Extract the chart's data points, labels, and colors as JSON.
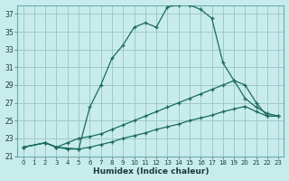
{
  "xlabel": "Humidex (Indice chaleur)",
  "bg_color": "#c8ecec",
  "grid_color": "#a0c8c8",
  "line_color": "#1a6b5a",
  "xlim": [
    -0.5,
    23.5
  ],
  "ylim": [
    21,
    38
  ],
  "yticks": [
    21,
    23,
    25,
    27,
    29,
    31,
    33,
    35,
    37
  ],
  "xticks": [
    0,
    1,
    2,
    3,
    4,
    5,
    6,
    7,
    8,
    9,
    10,
    11,
    12,
    13,
    14,
    15,
    16,
    17,
    18,
    19,
    20,
    21,
    22,
    23
  ],
  "line1_x": [
    0,
    2,
    3,
    4,
    5,
    6,
    7,
    8,
    9,
    10,
    11,
    12,
    13,
    14,
    15,
    16,
    17,
    18,
    19,
    20,
    21,
    22,
    23
  ],
  "line1_y": [
    22.0,
    22.5,
    22.0,
    21.8,
    21.8,
    26.5,
    29.0,
    32.0,
    33.5,
    35.5,
    36.0,
    35.5,
    37.8,
    38.0,
    38.0,
    37.5,
    36.5,
    31.5,
    29.5,
    27.5,
    26.5,
    25.8,
    25.5
  ],
  "line2_x": [
    0,
    2,
    3,
    4,
    5,
    6,
    7,
    8,
    9,
    10,
    11,
    12,
    13,
    14,
    15,
    16,
    17,
    18,
    19,
    20,
    21,
    22,
    23
  ],
  "line2_y": [
    22.0,
    22.5,
    22.0,
    22.5,
    23.0,
    23.2,
    23.5,
    24.0,
    24.5,
    25.0,
    25.5,
    26.0,
    26.5,
    27.0,
    27.5,
    28.0,
    28.5,
    29.0,
    29.5,
    29.0,
    27.0,
    25.5,
    25.5
  ],
  "line3_x": [
    0,
    2,
    3,
    5,
    6,
    7,
    8,
    9,
    10,
    11,
    12,
    13,
    14,
    15,
    16,
    17,
    18,
    19,
    20,
    21,
    22,
    23
  ],
  "line3_y": [
    22.0,
    22.5,
    22.0,
    21.8,
    22.0,
    22.3,
    22.6,
    23.0,
    23.3,
    23.6,
    24.0,
    24.3,
    24.6,
    25.0,
    25.3,
    25.6,
    26.0,
    26.3,
    26.6,
    26.0,
    25.5,
    25.5
  ]
}
